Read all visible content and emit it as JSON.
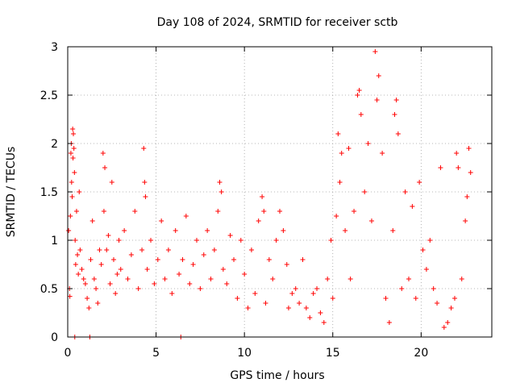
{
  "chart_data": {
    "type": "scatter",
    "title": "Day 108 of 2024, SRMTID for receiver sctb",
    "xlabel": "GPS time / hours",
    "ylabel": "SRMTID / TECUs",
    "xlim": [
      0,
      24
    ],
    "ylim": [
      0,
      3
    ],
    "xticks": [
      0,
      5,
      10,
      15,
      20
    ],
    "yticks": [
      0,
      0.5,
      1,
      1.5,
      2,
      2.5,
      3
    ],
    "ytick_labels": [
      "0",
      "0.5",
      "1",
      "1.5",
      "2",
      "2.5",
      "3"
    ],
    "grid": true,
    "marker": "+",
    "series": [
      {
        "name": "SRMTID",
        "color": "#ff0000",
        "points": [
          [
            0.05,
            1.1
          ],
          [
            0.1,
            0.5
          ],
          [
            0.12,
            0.42
          ],
          [
            0.15,
            1.25
          ],
          [
            0.18,
            1.9
          ],
          [
            0.2,
            2.0
          ],
          [
            0.22,
            1.6
          ],
          [
            0.25,
            1.45
          ],
          [
            0.28,
            2.15
          ],
          [
            0.3,
            1.85
          ],
          [
            0.32,
            2.1
          ],
          [
            0.35,
            1.95
          ],
          [
            0.38,
            1.7
          ],
          [
            0.4,
            0.0
          ],
          [
            0.42,
            1.0
          ],
          [
            0.45,
            0.75
          ],
          [
            0.5,
            1.3
          ],
          [
            0.55,
            0.85
          ],
          [
            0.6,
            0.65
          ],
          [
            0.65,
            1.5
          ],
          [
            0.7,
            0.9
          ],
          [
            0.8,
            0.7
          ],
          [
            0.9,
            0.6
          ],
          [
            1.0,
            0.55
          ],
          [
            1.1,
            0.4
          ],
          [
            1.2,
            0.3
          ],
          [
            1.25,
            0.0
          ],
          [
            1.3,
            0.8
          ],
          [
            1.4,
            1.2
          ],
          [
            1.5,
            0.6
          ],
          [
            1.6,
            0.5
          ],
          [
            1.7,
            0.35
          ],
          [
            1.8,
            0.9
          ],
          [
            1.9,
            0.75
          ],
          [
            2.0,
            1.9
          ],
          [
            2.05,
            1.3
          ],
          [
            2.1,
            1.75
          ],
          [
            2.2,
            0.9
          ],
          [
            2.3,
            1.05
          ],
          [
            2.4,
            0.55
          ],
          [
            2.5,
            1.6
          ],
          [
            2.6,
            0.8
          ],
          [
            2.7,
            0.45
          ],
          [
            2.8,
            0.65
          ],
          [
            2.9,
            1.0
          ],
          [
            3.0,
            0.7
          ],
          [
            3.2,
            1.1
          ],
          [
            3.4,
            0.6
          ],
          [
            3.6,
            0.85
          ],
          [
            3.8,
            1.3
          ],
          [
            4.0,
            0.5
          ],
          [
            4.2,
            0.9
          ],
          [
            4.3,
            1.95
          ],
          [
            4.35,
            1.6
          ],
          [
            4.4,
            1.45
          ],
          [
            4.5,
            0.7
          ],
          [
            4.7,
            1.0
          ],
          [
            4.9,
            0.55
          ],
          [
            5.1,
            0.8
          ],
          [
            5.3,
            1.2
          ],
          [
            5.5,
            0.6
          ],
          [
            5.7,
            0.9
          ],
          [
            5.9,
            0.45
          ],
          [
            6.1,
            1.1
          ],
          [
            6.3,
            0.65
          ],
          [
            6.4,
            0.0
          ],
          [
            6.5,
            0.8
          ],
          [
            6.7,
            1.25
          ],
          [
            6.9,
            0.55
          ],
          [
            7.1,
            0.75
          ],
          [
            7.3,
            1.0
          ],
          [
            7.5,
            0.5
          ],
          [
            7.7,
            0.85
          ],
          [
            7.9,
            1.1
          ],
          [
            8.1,
            0.6
          ],
          [
            8.3,
            0.9
          ],
          [
            8.5,
            1.3
          ],
          [
            8.6,
            1.6
          ],
          [
            8.7,
            1.5
          ],
          [
            8.8,
            0.7
          ],
          [
            9.0,
            0.55
          ],
          [
            9.2,
            1.05
          ],
          [
            9.4,
            0.8
          ],
          [
            9.6,
            0.4
          ],
          [
            9.8,
            1.0
          ],
          [
            10.0,
            0.65
          ],
          [
            10.2,
            0.3
          ],
          [
            10.4,
            0.9
          ],
          [
            10.6,
            0.45
          ],
          [
            10.8,
            1.2
          ],
          [
            11.0,
            1.45
          ],
          [
            11.1,
            1.3
          ],
          [
            11.2,
            0.35
          ],
          [
            11.4,
            0.8
          ],
          [
            11.6,
            0.6
          ],
          [
            11.8,
            1.0
          ],
          [
            12.0,
            1.3
          ],
          [
            12.2,
            1.1
          ],
          [
            12.4,
            0.75
          ],
          [
            12.5,
            0.3
          ],
          [
            12.7,
            0.45
          ],
          [
            12.9,
            0.5
          ],
          [
            13.1,
            0.35
          ],
          [
            13.3,
            0.8
          ],
          [
            13.5,
            0.3
          ],
          [
            13.7,
            0.2
          ],
          [
            13.9,
            0.45
          ],
          [
            14.1,
            0.5
          ],
          [
            14.3,
            0.25
          ],
          [
            14.5,
            0.15
          ],
          [
            14.7,
            0.6
          ],
          [
            14.9,
            1.0
          ],
          [
            15.0,
            0.4
          ],
          [
            15.2,
            1.25
          ],
          [
            15.3,
            2.1
          ],
          [
            15.4,
            1.6
          ],
          [
            15.5,
            1.9
          ],
          [
            15.7,
            1.1
          ],
          [
            15.9,
            1.95
          ],
          [
            16.0,
            0.6
          ],
          [
            16.2,
            1.3
          ],
          [
            16.4,
            2.5
          ],
          [
            16.5,
            2.55
          ],
          [
            16.6,
            2.3
          ],
          [
            16.8,
            1.5
          ],
          [
            17.0,
            2.0
          ],
          [
            17.2,
            1.2
          ],
          [
            17.4,
            2.95
          ],
          [
            17.5,
            2.45
          ],
          [
            17.6,
            2.7
          ],
          [
            17.8,
            1.9
          ],
          [
            18.0,
            0.4
          ],
          [
            18.2,
            0.15
          ],
          [
            18.4,
            1.1
          ],
          [
            18.5,
            2.3
          ],
          [
            18.6,
            2.45
          ],
          [
            18.7,
            2.1
          ],
          [
            18.9,
            0.5
          ],
          [
            19.1,
            1.5
          ],
          [
            19.3,
            0.6
          ],
          [
            19.5,
            1.35
          ],
          [
            19.7,
            0.4
          ],
          [
            19.9,
            1.6
          ],
          [
            20.1,
            0.9
          ],
          [
            20.3,
            0.7
          ],
          [
            20.5,
            1.0
          ],
          [
            20.7,
            0.5
          ],
          [
            20.9,
            0.35
          ],
          [
            21.1,
            1.75
          ],
          [
            21.3,
            0.1
          ],
          [
            21.5,
            0.15
          ],
          [
            21.7,
            0.3
          ],
          [
            21.9,
            0.4
          ],
          [
            22.0,
            1.9
          ],
          [
            22.1,
            1.75
          ],
          [
            22.3,
            0.6
          ],
          [
            22.5,
            1.2
          ],
          [
            22.6,
            1.45
          ],
          [
            22.7,
            1.95
          ],
          [
            22.8,
            1.7
          ]
        ]
      }
    ]
  }
}
